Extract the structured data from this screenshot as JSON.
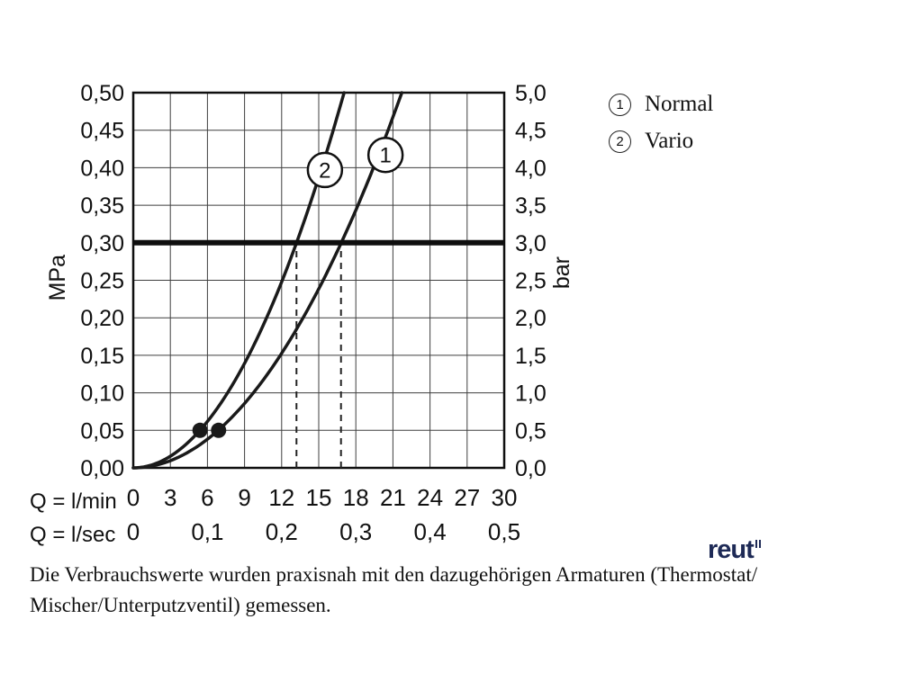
{
  "chart_data": {
    "type": "line",
    "title": "",
    "grid": true,
    "x_axis": {
      "label": "Q = l/min",
      "min": 0,
      "max": 30,
      "step": 3,
      "tick_labels": [
        "0",
        "3",
        "6",
        "9",
        "12",
        "15",
        "18",
        "21",
        "24",
        "27",
        "30"
      ]
    },
    "x_axis_secondary": {
      "label": "Q = l/sec",
      "tick_values_lmin": [
        0,
        6,
        12,
        18,
        24,
        30
      ],
      "tick_labels": [
        "0",
        "0,1",
        "0,2",
        "0,3",
        "0,4",
        "0,5"
      ]
    },
    "y_axis_left": {
      "label": "MPa",
      "min": 0,
      "max": 0.5,
      "step": 0.05,
      "tick_labels": [
        "0,00",
        "0,05",
        "0,10",
        "0,15",
        "0,20",
        "0,25",
        "0,30",
        "0,35",
        "0,40",
        "0,45",
        "0,50"
      ]
    },
    "y_axis_right": {
      "label": "bar",
      "min": 0,
      "max": 5.0,
      "step": 0.5,
      "tick_labels": [
        "0,0",
        "0,5",
        "1,0",
        "1,5",
        "2,0",
        "2,5",
        "3,0",
        "3,5",
        "4,0",
        "4,5",
        "5,0"
      ]
    },
    "reference_line_mpa": 0.3,
    "reference_line_bar": 3.0,
    "series": [
      {
        "id": "1",
        "name": "Normal",
        "k_mpa_per_lmin2": 0.00106,
        "points_lmin_mpa": [
          [
            0,
            0
          ],
          [
            5,
            0.027
          ],
          [
            6.9,
            0.05
          ],
          [
            10,
            0.106
          ],
          [
            13,
            0.18
          ],
          [
            15,
            0.24
          ],
          [
            16.8,
            0.3
          ],
          [
            19,
            0.38
          ],
          [
            21.7,
            0.5
          ]
        ],
        "marker": {
          "q_lmin": 6.9,
          "p_mpa": 0.05
        },
        "crossing_q_lmin": 16.8,
        "label_pos_lmin": 20.4,
        "label_pos_mpa": 0.417
      },
      {
        "id": "2",
        "name": "Vario",
        "k_mpa_per_lmin2": 0.00172,
        "points_lmin_mpa": [
          [
            0,
            0
          ],
          [
            5.4,
            0.05
          ],
          [
            8,
            0.11
          ],
          [
            10,
            0.17
          ],
          [
            12,
            0.25
          ],
          [
            13.2,
            0.3
          ],
          [
            15,
            0.39
          ],
          [
            17,
            0.5
          ]
        ],
        "marker": {
          "q_lmin": 5.4,
          "p_mpa": 0.05
        },
        "crossing_q_lmin": 13.2,
        "label_pos_lmin": 15.5,
        "label_pos_mpa": 0.397
      }
    ]
  },
  "legend": {
    "items": [
      {
        "symbol": "1",
        "label": "Normal"
      },
      {
        "symbol": "2",
        "label": "Vario"
      }
    ]
  },
  "footer": {
    "line1": "Die Verbrauchswerte wurden praxisnah mit den dazugehörigen Armaturen (Thermostat/",
    "line2": "Mischer/Unterputzventil) gemessen."
  },
  "logo": {
    "text": "reut"
  },
  "colors": {
    "curve": "#1a1a1a",
    "grid": "#3f3f3f",
    "frame": "#0f0f0f",
    "reference": "#0f0f0f",
    "text": "#111111",
    "logo": "#1e2a56"
  }
}
